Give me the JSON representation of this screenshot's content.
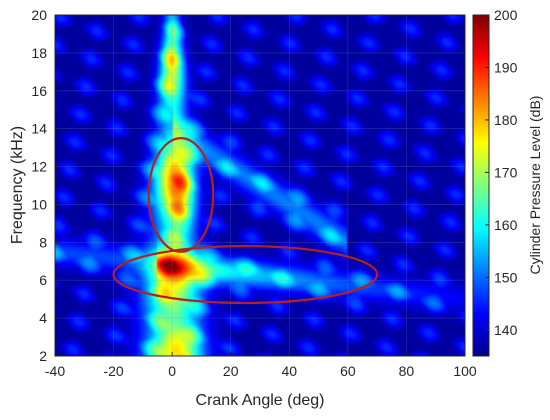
{
  "chart_data": {
    "type": "heatmap",
    "title": "",
    "xlabel": "Crank Angle (deg)",
    "ylabel": "Frequency (kHz)",
    "xlim": [
      -40,
      100
    ],
    "ylim": [
      2,
      20
    ],
    "x_ticks": [
      -40,
      -20,
      0,
      20,
      40,
      60,
      80,
      100
    ],
    "y_ticks": [
      2,
      4,
      6,
      8,
      10,
      12,
      14,
      16,
      18,
      20
    ],
    "colorbar": {
      "label": "Cylinder Pressure Level (dB)",
      "range": [
        135,
        200
      ],
      "ticks": [
        140,
        150,
        160,
        170,
        180,
        190,
        200
      ],
      "colormap": "jet"
    },
    "features": [
      {
        "name": "ignition-band",
        "x_center": 0,
        "y_range": [
          2,
          20
        ],
        "level_db": 172
      },
      {
        "name": "combustion-hotspot",
        "x_center": 3,
        "y_center": 10.5,
        "level_db": 187
      },
      {
        "name": "low-freq-band",
        "x_range": [
          -5,
          100
        ],
        "y_center": 6.5,
        "level_db": 165
      }
    ],
    "annotations": [
      {
        "shape": "ellipse",
        "center": [
          3,
          10.5
        ],
        "radii": [
          11,
          3
        ],
        "color": "#b22222"
      },
      {
        "shape": "ellipse",
        "center": [
          25,
          6.3
        ],
        "radii": [
          45,
          1.5
        ],
        "color": "#b22222"
      }
    ],
    "grid": true
  }
}
